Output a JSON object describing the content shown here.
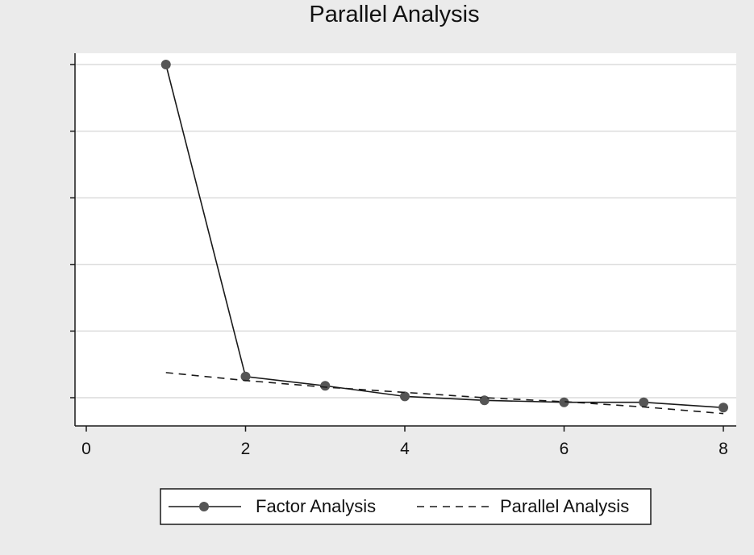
{
  "chart_data": {
    "type": "line",
    "title": "Parallel Analysis",
    "xlabel": "",
    "ylabel": "",
    "x_ticks": [
      "0",
      "2",
      "4",
      "6",
      "8"
    ],
    "xlim": [
      0,
      8
    ],
    "ylim": [
      -0.4,
      2.05
    ],
    "y_grid": [
      0,
      0.5,
      1.0,
      1.5,
      2.0,
      2.5
    ],
    "grid": true,
    "legend_position": "bottom",
    "x": [
      1,
      2,
      3,
      4,
      5,
      6,
      7,
      8
    ],
    "series": [
      {
        "name": "Factor Analysis",
        "style": "solid-markers",
        "color": "#1a1a1a",
        "marker_color": "#555555",
        "values": [
          2.52,
          0.16,
          0.09,
          0.01,
          -0.02,
          -0.035,
          -0.035,
          -0.075
        ]
      },
      {
        "name": "Parallel Analysis",
        "style": "dashed",
        "color": "#1a1a1a",
        "values": [
          0.19,
          0.13,
          0.08,
          0.04,
          0.0,
          -0.03,
          -0.07,
          -0.12
        ]
      }
    ]
  }
}
